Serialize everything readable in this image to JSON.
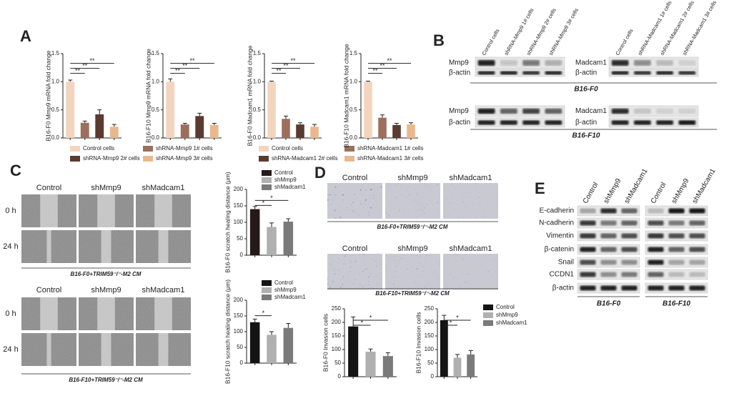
{
  "panels": {
    "a": "A",
    "b": "B",
    "c": "C",
    "d": "D",
    "e": "E"
  },
  "chart_data": [
    {
      "type": "bar",
      "ylabel": "B16-F0 Mmp9 mRNA fold change",
      "ylim": [
        0,
        1.5
      ],
      "yticks": [
        {
          "value": 0,
          "label": "0.0"
        },
        {
          "value": 0.5,
          "label": "0.5"
        },
        {
          "value": 1,
          "label": "1.0"
        },
        {
          "value": 1.5,
          "label": "1.5"
        }
      ],
      "series": [
        {
          "name": "Control cells",
          "color": "#f3d5bf",
          "values": [
            1.0
          ],
          "errors": [
            0.03
          ]
        },
        {
          "name": "shRNA-Mmp9 1# cells",
          "color": "#9c6f5d",
          "values": [
            0.27
          ],
          "errors": [
            0.03
          ]
        },
        {
          "name": "shRNA-Mmp9 2# cells",
          "color": "#5a3b30",
          "values": [
            0.42
          ],
          "errors": [
            0.08
          ]
        },
        {
          "name": "shRNA-Mmp9 3# cells",
          "color": "#e9b98e",
          "values": [
            0.2
          ],
          "errors": [
            0.04
          ]
        }
      ],
      "annotations": [
        {
          "text": "**",
          "pair": [
            0,
            1
          ]
        },
        {
          "text": "**",
          "pair": [
            0,
            2
          ]
        },
        {
          "text": "**",
          "pair": [
            0,
            3
          ]
        }
      ]
    },
    {
      "type": "bar",
      "ylabel": "B16-F10 Mmp9 mRNA fold change",
      "ylim": [
        0,
        1.5
      ],
      "yticks": [
        {
          "value": 0,
          "label": "0.0"
        },
        {
          "value": 0.5,
          "label": "0.5"
        },
        {
          "value": 1,
          "label": "1.0"
        },
        {
          "value": 1.5,
          "label": "1.5"
        }
      ],
      "series": [
        {
          "color": "#f3d5bf",
          "values": [
            1.0
          ],
          "errors": [
            0.05
          ]
        },
        {
          "color": "#9c6f5d",
          "values": [
            0.24
          ],
          "errors": [
            0.02
          ]
        },
        {
          "color": "#5a3b30",
          "values": [
            0.39
          ],
          "errors": [
            0.05
          ]
        },
        {
          "color": "#e9b98e",
          "values": [
            0.23
          ],
          "errors": [
            0.03
          ]
        }
      ],
      "annotations": [
        {
          "text": "**",
          "pair": [
            0,
            1
          ]
        },
        {
          "text": "**",
          "pair": [
            0,
            2
          ]
        },
        {
          "text": "**",
          "pair": [
            0,
            3
          ]
        }
      ]
    },
    {
      "type": "bar",
      "ylabel": "B16-F0 Madcam1 mRNA fold change",
      "ylim": [
        0,
        1.5
      ],
      "yticks": [
        {
          "value": 0,
          "label": "0.0"
        },
        {
          "value": 0.5,
          "label": "0.5"
        },
        {
          "value": 1,
          "label": "1.0"
        },
        {
          "value": 1.5,
          "label": "1.5"
        }
      ],
      "series": [
        {
          "name": "Control cells",
          "color": "#f3d5bf",
          "values": [
            1.0
          ],
          "errors": [
            0.01
          ]
        },
        {
          "name": "shRNA-Madcam1 1# cells",
          "color": "#9c6f5d",
          "values": [
            0.34
          ],
          "errors": [
            0.05
          ]
        },
        {
          "name": "shRNA-Madcam1 2# cells",
          "color": "#5a3b30",
          "values": [
            0.24
          ],
          "errors": [
            0.03
          ]
        },
        {
          "name": "shRNA-Madcam1 3# cells",
          "color": "#e9b98e",
          "values": [
            0.2
          ],
          "errors": [
            0.04
          ]
        }
      ],
      "annotations": [
        {
          "text": "**",
          "pair": [
            0,
            1
          ]
        },
        {
          "text": "**",
          "pair": [
            0,
            2
          ]
        },
        {
          "text": "**",
          "pair": [
            0,
            3
          ]
        }
      ]
    },
    {
      "type": "bar",
      "ylabel": "B16-F10 Madcam1 mRNA fold change",
      "ylim": [
        0,
        1.5
      ],
      "yticks": [
        {
          "value": 0,
          "label": "0.0"
        },
        {
          "value": 0.5,
          "label": "0.5"
        },
        {
          "value": 1,
          "label": "1.0"
        },
        {
          "value": 1.5,
          "label": "1.5"
        }
      ],
      "series": [
        {
          "color": "#f3d5bf",
          "values": [
            1.0
          ],
          "errors": [
            0.01
          ]
        },
        {
          "color": "#9c6f5d",
          "values": [
            0.36
          ],
          "errors": [
            0.05
          ]
        },
        {
          "color": "#5a3b30",
          "values": [
            0.23
          ],
          "errors": [
            0.03
          ]
        },
        {
          "color": "#e9b98e",
          "values": [
            0.24
          ],
          "errors": [
            0.03
          ]
        }
      ],
      "annotations": [
        {
          "text": "**",
          "pair": [
            0,
            1
          ]
        },
        {
          "text": "**",
          "pair": [
            0,
            2
          ]
        },
        {
          "text": "**",
          "pair": [
            0,
            3
          ]
        }
      ]
    },
    {
      "type": "bar",
      "ylabel": "B16-F0 scratch healing distance (μm)",
      "ylim": [
        0,
        200
      ],
      "yticks": [
        0,
        50,
        100,
        150,
        200
      ],
      "series": [
        {
          "name": "Control",
          "color": "#241a1a",
          "values": [
            140
          ],
          "errors": [
            8
          ]
        },
        {
          "name": "shMmp9",
          "color": "#b0b0b0",
          "values": [
            86
          ],
          "errors": [
            12
          ]
        },
        {
          "name": "shMadcam1",
          "color": "#7a7a7a",
          "values": [
            102
          ],
          "errors": [
            9
          ]
        }
      ],
      "annotations": [
        {
          "text": "*",
          "pair": [
            0,
            1
          ]
        },
        {
          "text": "*",
          "pair": [
            0,
            2
          ]
        }
      ]
    },
    {
      "type": "bar",
      "ylabel": "B16-F10 scratch healing distance (μm)",
      "ylim": [
        0,
        200
      ],
      "yticks": [
        0,
        50,
        100,
        150,
        200
      ],
      "series": [
        {
          "name": "Control",
          "color": "#141414",
          "values": [
            130
          ],
          "errors": [
            10
          ]
        },
        {
          "name": "shMmp9",
          "color": "#b0b0b0",
          "values": [
            90
          ],
          "errors": [
            10
          ]
        },
        {
          "name": "shMadcam1",
          "color": "#7a7a7a",
          "values": [
            112
          ],
          "errors": [
            14
          ]
        }
      ],
      "annotations": [
        {
          "text": "*",
          "pair": [
            0,
            1
          ]
        }
      ]
    },
    {
      "type": "bar",
      "ylabel": "B16-F0 Invasion cells",
      "ylim": [
        0,
        250
      ],
      "yticks": [
        0,
        50,
        100,
        150,
        200,
        250
      ],
      "series": [
        {
          "color": "#141414",
          "values": [
            185
          ],
          "errors": [
            35
          ]
        },
        {
          "color": "#b0b0b0",
          "values": [
            92
          ],
          "errors": [
            10
          ]
        },
        {
          "color": "#7a7a7a",
          "values": [
            76
          ],
          "errors": [
            12
          ]
        }
      ],
      "annotations": [
        {
          "text": "*",
          "pair": [
            0,
            1
          ]
        },
        {
          "text": "*",
          "pair": [
            0,
            2
          ]
        }
      ]
    },
    {
      "type": "bar",
      "ylabel": "B16-F10 Invasion cells",
      "ylim": [
        0,
        250
      ],
      "yticks": [
        0,
        50,
        100,
        150,
        200,
        250
      ],
      "series": [
        {
          "name": "Control",
          "color": "#141414",
          "values": [
            208
          ],
          "errors": [
            18
          ]
        },
        {
          "name": "shMmp9",
          "color": "#b0b0b0",
          "values": [
            70
          ],
          "errors": [
            12
          ]
        },
        {
          "name": "shMadcam1",
          "color": "#7a7a7a",
          "values": [
            82
          ],
          "errors": [
            14
          ]
        }
      ],
      "annotations": [
        {
          "text": "*",
          "pair": [
            0,
            1
          ]
        },
        {
          "text": "*",
          "pair": [
            0,
            2
          ]
        }
      ]
    }
  ],
  "blot_b": {
    "left": {
      "lanes": [
        "Control cells",
        "shRNA-Mmp9 1# cells",
        "shRNA-Mmp9 2# cells",
        "shRNA-Mmp9 3# cells"
      ],
      "rows": [
        "Mmp9",
        "β-actin"
      ]
    },
    "right": {
      "lanes": [
        "Control cells",
        "shRNA-Madcam1 1# cells",
        "shRNA-Madcam1 2# cells",
        "shRNA-Madcam1 3# cells"
      ],
      "rows": [
        "Madcam1",
        "β-actin"
      ]
    },
    "groups": [
      "B16-F0",
      "B16-F10"
    ]
  },
  "scratch": {
    "columns": [
      "Control",
      "shMmp9",
      "shMadcam1"
    ],
    "rows": [
      "0 h",
      "24 h"
    ],
    "captions": [
      "B16-F0+TRIM59⁻/⁻-M2 CM",
      "B16-F10+TRIM59⁻/⁻-M2 CM"
    ]
  },
  "invasion": {
    "columns": [
      "Control",
      "shMmp9",
      "shMadcam1"
    ],
    "captions": [
      "B16-F0+TRIM59⁻/⁻-M2 CM",
      "B16-F10+TRIM59⁻/⁻-M2 CM"
    ]
  },
  "blot_e": {
    "lanes": [
      "Control",
      "shMmp9",
      "shMadcam1"
    ],
    "rows": [
      "E-cadherin",
      "N-cadherin",
      "Vimentin",
      "β-catenin",
      "Snail",
      "CCDN1",
      "β-actin"
    ],
    "groups": [
      "B16-F0",
      "B16-F10"
    ]
  }
}
